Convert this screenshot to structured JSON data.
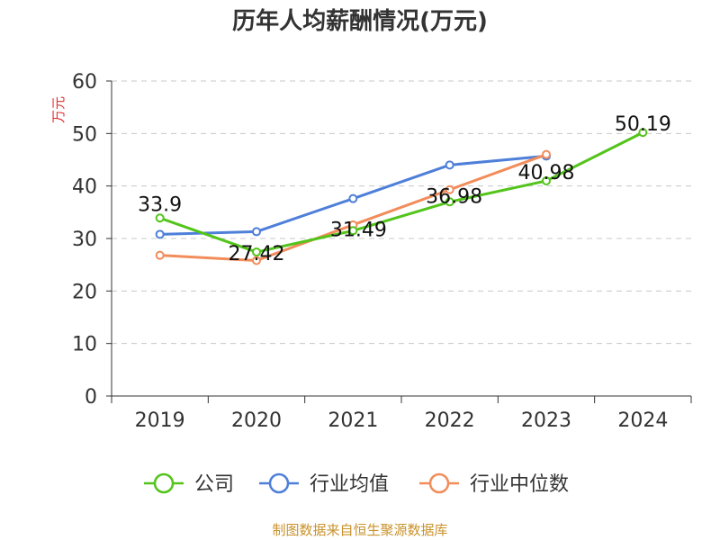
{
  "chart_data": {
    "type": "line",
    "title": "历年人均薪酬情况(万元)",
    "ylabel": "万元",
    "xlabel": "",
    "categories": [
      "2019",
      "2020",
      "2021",
      "2022",
      "2023",
      "2024"
    ],
    "ylim": [
      0,
      60
    ],
    "yticks": [
      0,
      10,
      20,
      30,
      40,
      50,
      60
    ],
    "grid": true,
    "legend_position": "bottom",
    "series": [
      {
        "name": "公司",
        "color": "#52c41a",
        "values": [
          33.9,
          27.42,
          31.49,
          36.98,
          40.98,
          50.19
        ],
        "labels": [
          "33.9",
          "27.42",
          "31.49",
          "36.98",
          "40.98",
          "50.19"
        ]
      },
      {
        "name": "行业均值",
        "color": "#4e7fd9",
        "values": [
          30.8,
          31.3,
          37.6,
          44.0,
          45.7,
          null
        ]
      },
      {
        "name": "行业中位数",
        "color": "#f28c5a",
        "values": [
          26.8,
          25.8,
          32.6,
          39.3,
          46.0,
          null
        ]
      }
    ],
    "source": "制图数据来自恒生聚源数据库"
  }
}
